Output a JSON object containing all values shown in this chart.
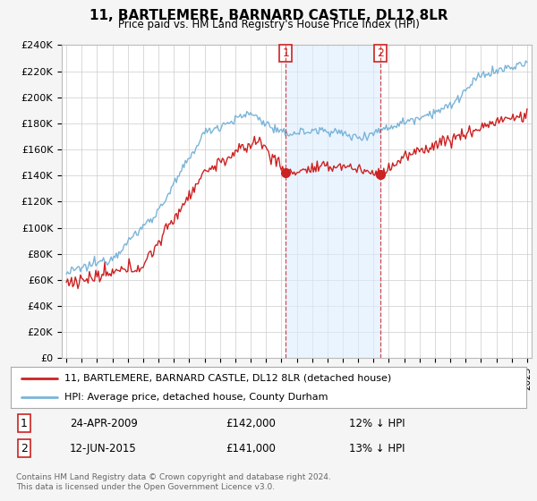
{
  "title": "11, BARTLEMERE, BARNARD CASTLE, DL12 8LR",
  "subtitle": "Price paid vs. HM Land Registry's House Price Index (HPI)",
  "ylabel_vals": [
    "£0",
    "£20K",
    "£40K",
    "£60K",
    "£80K",
    "£100K",
    "£120K",
    "£140K",
    "£160K",
    "£180K",
    "£200K",
    "£220K",
    "£240K"
  ],
  "ylim": [
    0,
    240000
  ],
  "yticks": [
    0,
    20000,
    40000,
    60000,
    80000,
    100000,
    120000,
    140000,
    160000,
    180000,
    200000,
    220000,
    240000
  ],
  "legend_line1": "11, BARTLEMERE, BARNARD CASTLE, DL12 8LR (detached house)",
  "legend_line2": "HPI: Average price, detached house, County Durham",
  "sale1_label": "1",
  "sale1_date": "24-APR-2009",
  "sale1_price": "£142,000",
  "sale1_hpi": "12% ↓ HPI",
  "sale2_label": "2",
  "sale2_date": "12-JUN-2015",
  "sale2_price": "£141,000",
  "sale2_hpi": "13% ↓ HPI",
  "footnote": "Contains HM Land Registry data © Crown copyright and database right 2024.\nThis data is licensed under the Open Government Licence v3.0.",
  "hpi_color": "#7ab4d8",
  "price_color": "#cc2222",
  "sale_marker_color": "#cc2222",
  "background_color": "#f5f5f5",
  "plot_bg_color": "#ffffff",
  "grid_color": "#cccccc",
  "shade_color": "#ddeeff",
  "sale1_x": 2009.29,
  "sale2_x": 2015.45
}
